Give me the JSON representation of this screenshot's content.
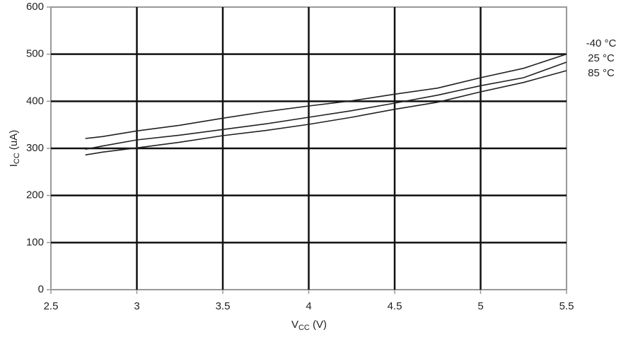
{
  "chart_data": {
    "type": "line",
    "xlabel": [
      "V",
      "CC",
      " (V)"
    ],
    "ylabel": [
      "I",
      "CC",
      " (uA)"
    ],
    "x": [
      2.7,
      2.8,
      3.0,
      3.25,
      3.5,
      3.75,
      4.0,
      4.25,
      4.5,
      4.75,
      5.0,
      5.25,
      5.5
    ],
    "series": [
      {
        "name": "-40 °C",
        "color": "#222222",
        "values": [
          321,
          325,
          337,
          349,
          364,
          378,
          390,
          401,
          415,
          428,
          450,
          470,
          500
        ]
      },
      {
        "name": "25 °C",
        "color": "#222222",
        "values": [
          298,
          305,
          318,
          328,
          340,
          352,
          366,
          380,
          396,
          413,
          433,
          450,
          483
        ]
      },
      {
        "name": "85 °C",
        "color": "#222222",
        "values": [
          286,
          292,
          301,
          313,
          327,
          338,
          351,
          366,
          383,
          398,
          420,
          440,
          465
        ]
      }
    ],
    "xlim": [
      2.5,
      5.5
    ],
    "xticks": [
      2.5,
      3,
      3.5,
      4,
      4.5,
      5,
      5.5
    ],
    "ylim": [
      0,
      600
    ],
    "yticks": [
      0,
      100,
      200,
      300,
      400,
      500,
      600
    ],
    "grid": true,
    "legend": "right"
  }
}
